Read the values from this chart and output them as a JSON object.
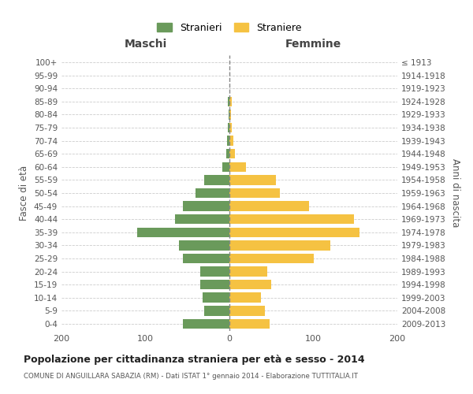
{
  "age_groups_bottom_to_top": [
    "0-4",
    "5-9",
    "10-14",
    "15-19",
    "20-24",
    "25-29",
    "30-34",
    "35-39",
    "40-44",
    "45-49",
    "50-54",
    "55-59",
    "60-64",
    "65-69",
    "70-74",
    "75-79",
    "80-84",
    "85-89",
    "90-94",
    "95-99",
    "100+"
  ],
  "birth_years_bottom_to_top": [
    "2009-2013",
    "2004-2008",
    "1999-2003",
    "1994-1998",
    "1989-1993",
    "1984-1988",
    "1979-1983",
    "1974-1978",
    "1969-1973",
    "1964-1968",
    "1959-1963",
    "1954-1958",
    "1949-1953",
    "1944-1948",
    "1939-1943",
    "1934-1938",
    "1929-1933",
    "1924-1928",
    "1919-1923",
    "1914-1918",
    "≤ 1913"
  ],
  "maschi_bottom_to_top": [
    55,
    30,
    32,
    35,
    35,
    55,
    60,
    110,
    65,
    55,
    40,
    30,
    8,
    4,
    3,
    2,
    1,
    2,
    0,
    0,
    0
  ],
  "femmine_bottom_to_top": [
    48,
    42,
    38,
    50,
    45,
    100,
    120,
    155,
    148,
    95,
    60,
    55,
    20,
    7,
    5,
    3,
    2,
    3,
    0,
    0,
    0
  ],
  "color_maschi": "#6a9a5b",
  "color_femmine": "#f5c242",
  "title": "Popolazione per cittadinanza straniera per età e sesso - 2014",
  "subtitle": "COMUNE DI ANGUILLARA SABAZIA (RM) - Dati ISTAT 1° gennaio 2014 - Elaborazione TUTTITALIA.IT",
  "xlabel_left": "Maschi",
  "xlabel_right": "Femmine",
  "ylabel_left": "Fasce di età",
  "ylabel_right": "Anni di nascita",
  "legend_maschi": "Stranieri",
  "legend_femmine": "Straniere",
  "xlim": 200,
  "bg_color": "#ffffff",
  "grid_color": "#cccccc",
  "bar_height": 0.75
}
